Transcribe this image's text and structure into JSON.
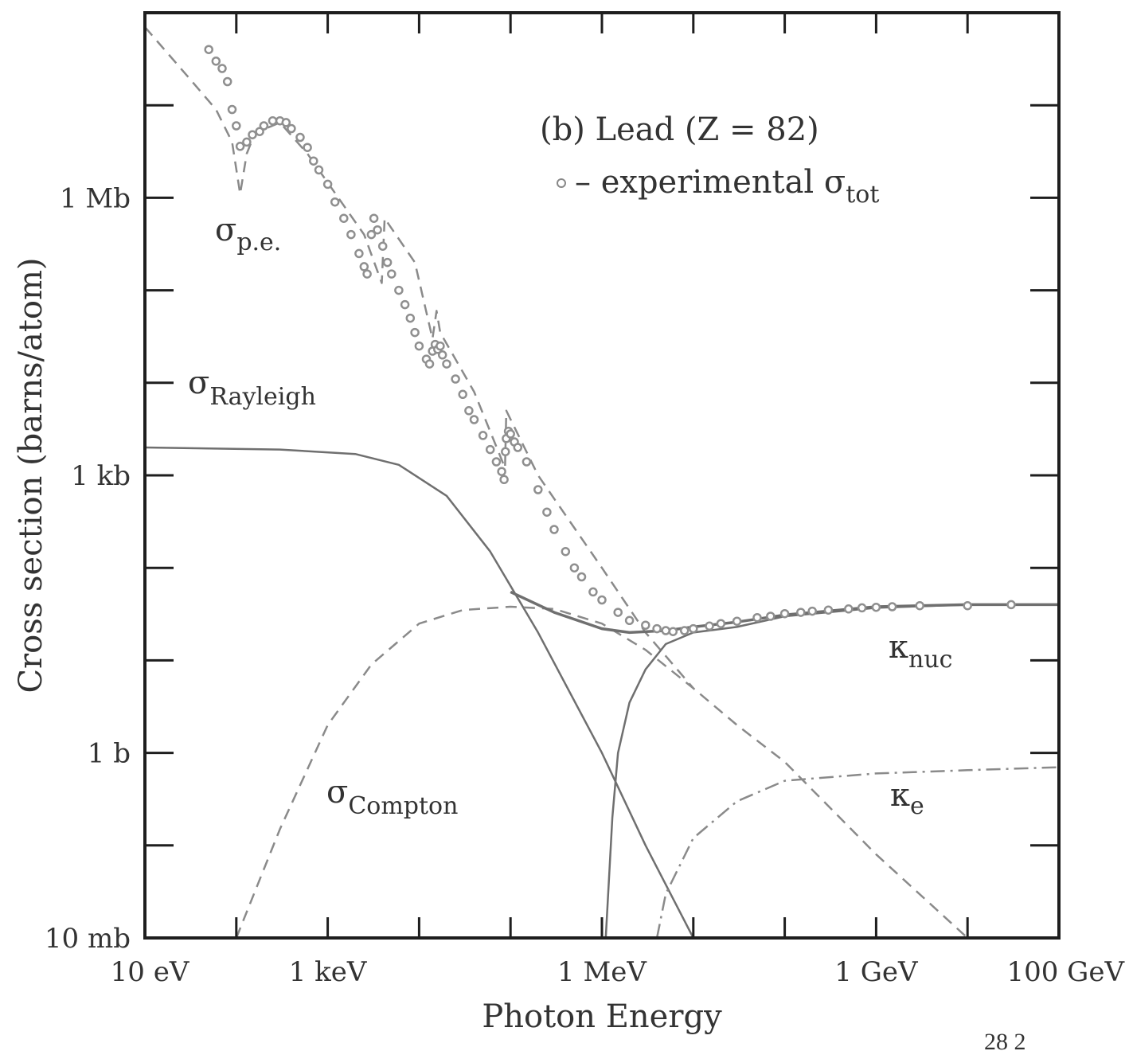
{
  "chart_data": {
    "type": "line",
    "title": "",
    "xlabel": "Photon Energy",
    "ylabel": "Cross section  (barns/atom)",
    "x_scale": "log",
    "y_scale": "log",
    "xlim_eV": [
      10,
      100000000000.0
    ],
    "ylim_barns": [
      0.01,
      100000000.0
    ],
    "x_ticks": [
      {
        "value": 10,
        "label": "10 eV"
      },
      {
        "value": 1000,
        "label": "1 keV"
      },
      {
        "value": 1000000,
        "label": "1 MeV"
      },
      {
        "value": 1000000000,
        "label": "1 GeV"
      },
      {
        "value": 100000000000,
        "label": "100 GeV"
      }
    ],
    "y_ticks": [
      {
        "value": 0.01,
        "label": "10 mb"
      },
      {
        "value": 1,
        "label": "1 b"
      },
      {
        "value": 1000,
        "label": "1 kb"
      },
      {
        "value": 1000000,
        "label": "1 Mb"
      }
    ],
    "legend": {
      "heading": "(b) Lead (Z = 82)",
      "marker_text": "– experimental σ",
      "marker_sub": "tot"
    },
    "annotations": {
      "pe": {
        "main": "σ",
        "sub": "p.e."
      },
      "rayleigh": {
        "main": "σ",
        "sub": "Rayleigh"
      },
      "compton": {
        "main": "σ",
        "sub": "Compton"
      },
      "knuc": {
        "main": "κ",
        "sub": "nuc"
      },
      "ke": {
        "main": "κ",
        "sub": "e"
      }
    },
    "series": [
      {
        "key": "pe",
        "style": "dashed",
        "points": [
          [
            10,
            70000000.0
          ],
          [
            30,
            20000000.0
          ],
          [
            60,
            9000000.0
          ],
          [
            90,
            4000000.0
          ],
          [
            110,
            1100000.0
          ],
          [
            130,
            3000000.0
          ],
          [
            160,
            5000000.0
          ],
          [
            300,
            6500000.0
          ],
          [
            600,
            3000000.0
          ],
          [
            2500,
            400000.0
          ],
          [
            3900,
            120000.0
          ],
          [
            4200,
            600000.0
          ],
          [
            9000,
            200000.0
          ],
          [
            14000,
            30000.0
          ],
          [
            15500,
            60000.0
          ],
          [
            17000,
            35000.0
          ],
          [
            40000,
            8000.0
          ],
          [
            87000,
            1200.0
          ],
          [
            90000,
            5000.0
          ],
          [
            200000,
            1000.0
          ],
          [
            1000000,
            100
          ],
          [
            3000000,
            20
          ],
          [
            10000000,
            5
          ]
        ]
      },
      {
        "key": "rayleigh",
        "style": "solid",
        "points": [
          [
            10,
            2000.0
          ],
          [
            300,
            1900.0
          ],
          [
            2000,
            1700.0
          ],
          [
            6000,
            1300.0
          ],
          [
            20000,
            600
          ],
          [
            60000,
            150
          ],
          [
            200000,
            20
          ],
          [
            1000000,
            1
          ],
          [
            3000000,
            0.1
          ],
          [
            10000000,
            0.01
          ]
        ]
      },
      {
        "key": "compton",
        "style": "dashed",
        "points": [
          [
            100,
            0.01
          ],
          [
            300,
            0.15
          ],
          [
            1000,
            2
          ],
          [
            3000,
            9
          ],
          [
            10000,
            25
          ],
          [
            30000,
            35
          ],
          [
            100000,
            38
          ],
          [
            300000,
            36
          ],
          [
            1000000,
            25
          ],
          [
            3000000,
            13
          ],
          [
            10000000,
            5
          ],
          [
            30000000,
            2
          ],
          [
            100000000,
            0.8
          ],
          [
            1000000000,
            0.08
          ],
          [
            10000000000,
            0.01
          ]
        ]
      },
      {
        "key": "knuc",
        "style": "solid",
        "points": [
          [
            1100000,
            0.01
          ],
          [
            1300000,
            0.2
          ],
          [
            1500000,
            1
          ],
          [
            2000000,
            3.5
          ],
          [
            3000000,
            8
          ],
          [
            5000000,
            15
          ],
          [
            10000000,
            20
          ],
          [
            30000000,
            23
          ],
          [
            100000000,
            30
          ],
          [
            1000000000,
            37
          ],
          [
            10000000000,
            40
          ],
          [
            100000000000,
            40
          ]
        ]
      },
      {
        "key": "ke",
        "style": "dashdot",
        "points": [
          [
            4000000,
            0.01
          ],
          [
            5000000,
            0.03
          ],
          [
            10000000,
            0.12
          ],
          [
            30000000,
            0.3
          ],
          [
            100000000,
            0.5
          ],
          [
            1000000000,
            0.6
          ],
          [
            10000000000,
            0.65
          ],
          [
            100000000000,
            0.7
          ]
        ]
      },
      {
        "key": "total",
        "style": "solid",
        "points": [
          [
            100000,
            55
          ],
          [
            300000,
            33
          ],
          [
            1000000,
            22
          ],
          [
            2000000,
            20
          ],
          [
            5000000,
            21
          ],
          [
            10000000,
            23
          ],
          [
            30000000,
            26
          ],
          [
            100000000,
            31
          ],
          [
            1000000000,
            38
          ],
          [
            10000000000,
            40
          ],
          [
            100000000000,
            40
          ]
        ]
      }
    ],
    "experimental": [
      [
        50,
        40000000.0
      ],
      [
        60,
        30000000.0
      ],
      [
        70,
        25000000.0
      ],
      [
        80,
        18000000.0
      ],
      [
        90,
        9000000.0
      ],
      [
        100,
        6000000.0
      ],
      [
        110,
        3600000.0
      ],
      [
        130,
        4000000.0
      ],
      [
        150,
        4800000.0
      ],
      [
        180,
        5200000.0
      ],
      [
        200,
        6000000.0
      ],
      [
        250,
        6800000.0
      ],
      [
        300,
        6800000.0
      ],
      [
        350,
        6500000.0
      ],
      [
        400,
        5600000.0
      ],
      [
        500,
        4500000.0
      ],
      [
        600,
        3500000.0
      ],
      [
        700,
        2500000.0
      ],
      [
        800,
        2000000.0
      ],
      [
        1000,
        1400000.0
      ],
      [
        1200,
        900000.0
      ],
      [
        1500,
        600000.0
      ],
      [
        1800,
        400000.0
      ],
      [
        2200,
        250000.0
      ],
      [
        2500,
        180000.0
      ],
      [
        2700,
        150000.0
      ],
      [
        3000,
        400000.0
      ],
      [
        3200,
        600000.0
      ],
      [
        3500,
        450000.0
      ],
      [
        4000,
        300000.0
      ],
      [
        4500,
        200000.0
      ],
      [
        5000,
        150000.0
      ],
      [
        6000,
        100000.0
      ],
      [
        7000,
        70000.0
      ],
      [
        8000,
        50000.0
      ],
      [
        9000,
        35000.0
      ],
      [
        10000,
        25000.0
      ],
      [
        12000,
        18000.0
      ],
      [
        13000,
        16000.0
      ],
      [
        14000,
        22000.0
      ],
      [
        15000,
        26000.0
      ],
      [
        16000,
        23000.0
      ],
      [
        17000,
        25000.0
      ],
      [
        18000,
        20000.0
      ],
      [
        20000,
        16000.0
      ],
      [
        25000,
        11000.0
      ],
      [
        30000,
        7500.0
      ],
      [
        35000,
        5000.0
      ],
      [
        40000,
        4000.0
      ],
      [
        50000,
        2700.0
      ],
      [
        60000,
        1900.0
      ],
      [
        70000,
        1400.0
      ],
      [
        80000,
        1100.0
      ],
      [
        85000,
        900
      ],
      [
        88000,
        1800.0
      ],
      [
        90000,
        2500.0
      ],
      [
        95000,
        3000.0
      ],
      [
        100000,
        2800.0
      ],
      [
        110000,
        2300.0
      ],
      [
        120000,
        2000.0
      ],
      [
        150000,
        1400.0
      ],
      [
        200000,
        700
      ],
      [
        250000,
        400
      ],
      [
        300000,
        260
      ],
      [
        400000,
        150
      ],
      [
        500000,
        100
      ],
      [
        600000,
        80
      ],
      [
        800000,
        55
      ],
      [
        1000000,
        45
      ],
      [
        1500000,
        33
      ],
      [
        2000000,
        27
      ],
      [
        3000000,
        24
      ],
      [
        4000000,
        22
      ],
      [
        5000000,
        21
      ],
      [
        6000000,
        20.5
      ],
      [
        8000000,
        21
      ],
      [
        10000000,
        22
      ],
      [
        15000000,
        23.5
      ],
      [
        20000000,
        25
      ],
      [
        30000000,
        26.5
      ],
      [
        50000000,
        29
      ],
      [
        70000000,
        30
      ],
      [
        100000000,
        32
      ],
      [
        150000000,
        33
      ],
      [
        200000000,
        34
      ],
      [
        300000000,
        35
      ],
      [
        500000000,
        36
      ],
      [
        700000000,
        37
      ],
      [
        1000000000,
        37.5
      ],
      [
        1500000000,
        38
      ],
      [
        3000000000,
        39
      ],
      [
        10000000000,
        39
      ],
      [
        30000000000,
        40
      ]
    ]
  },
  "stray_text": "28    2"
}
